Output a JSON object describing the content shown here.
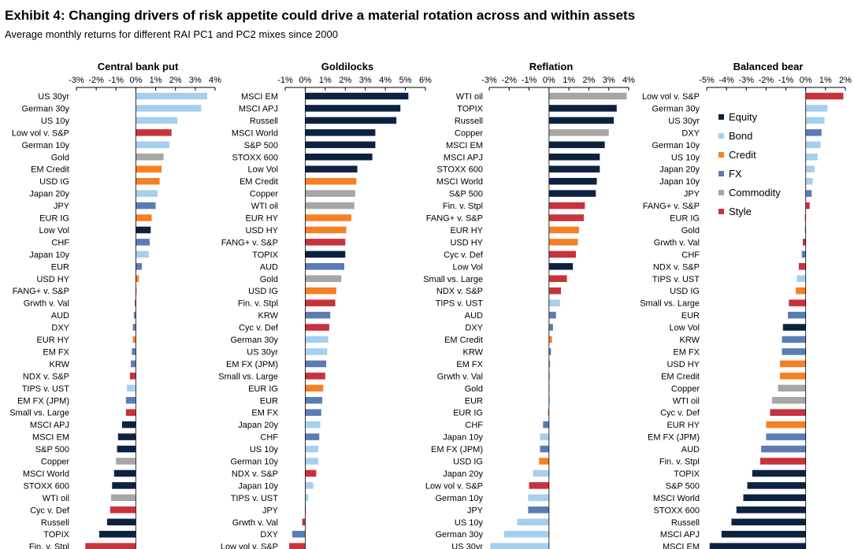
{
  "header": {
    "title": "Exhibit 4: Changing drivers of risk appetite could drive a material rotation across and within assets",
    "subtitle": "Average monthly returns for different RAI PC1 and PC2 mixes since 2000"
  },
  "colors": {
    "Equity": "#0d2240",
    "Bond": "#a6cfee",
    "Credit": "#f58025",
    "FX": "#5b7bb4",
    "Commodity": "#a6a6a6",
    "Style": "#c7323c"
  },
  "legend": [
    {
      "label": "Equity",
      "color": "#0d2240"
    },
    {
      "label": "Bond",
      "color": "#a6cfee"
    },
    {
      "label": "Credit",
      "color": "#f58025"
    },
    {
      "label": "FX",
      "color": "#5b7bb4"
    },
    {
      "label": "Commodity",
      "color": "#a6a6a6"
    },
    {
      "label": "Style",
      "color": "#c7323c"
    }
  ],
  "chart_data": [
    {
      "type": "bar",
      "orientation": "horizontal",
      "title": "Central bank put",
      "xlim": [
        -3,
        4
      ],
      "xticks": [
        "-3%",
        "-2%",
        "-1%",
        "0%",
        "1%",
        "2%",
        "3%",
        "4%"
      ],
      "categories": [
        "US 30yr",
        "German 30y",
        "US 10y",
        "Low vol v. S&P",
        "German 10y",
        "Gold",
        "EM Credit",
        "USD IG",
        "Japan 20y",
        "JPY",
        "EUR IG",
        "Low Vol",
        "CHF",
        "Japan 10y",
        "EUR",
        "USD HY",
        "FANG+ v. S&P",
        "Grwth v. Val",
        "AUD",
        "DXY",
        "EUR HY",
        "EM FX",
        "KRW",
        "NDX v. S&P",
        "TIPS v. UST",
        "EM FX (JPM)",
        "Small vs. Large",
        "MSCI APJ",
        "MSCI EM",
        "S&P 500",
        "Copper",
        "MSCI World",
        "STOXX 600",
        "WTI oil",
        "Cyc v. Def",
        "Russell",
        "TOPIX",
        "Fin. v. Stpl"
      ],
      "values": [
        3.6,
        3.3,
        2.1,
        1.8,
        1.7,
        1.4,
        1.3,
        1.2,
        1.1,
        1.0,
        0.8,
        0.75,
        0.7,
        0.65,
        0.3,
        0.15,
        0.0,
        -0.05,
        -0.1,
        -0.15,
        -0.15,
        -0.2,
        -0.25,
        -0.3,
        -0.45,
        -0.5,
        -0.5,
        -0.7,
        -0.9,
        -0.95,
        -1.0,
        -1.1,
        -1.2,
        -1.25,
        -1.3,
        -1.45,
        -1.85,
        -2.55
      ],
      "groups": [
        "Bond",
        "Bond",
        "Bond",
        "Style",
        "Bond",
        "Commodity",
        "Credit",
        "Credit",
        "Bond",
        "FX",
        "Credit",
        "Equity",
        "FX",
        "Bond",
        "FX",
        "Credit",
        "Style",
        "Style",
        "FX",
        "FX",
        "Credit",
        "FX",
        "FX",
        "Style",
        "Bond",
        "FX",
        "Style",
        "Equity",
        "Equity",
        "Equity",
        "Commodity",
        "Equity",
        "Equity",
        "Commodity",
        "Style",
        "Equity",
        "Equity",
        "Style"
      ]
    },
    {
      "type": "bar",
      "orientation": "horizontal",
      "title": "Goldilocks",
      "xlim": [
        -1,
        6
      ],
      "xticks": [
        "-1%",
        "0%",
        "1%",
        "2%",
        "3%",
        "4%",
        "5%",
        "6%"
      ],
      "categories": [
        "MSCI EM",
        "MSCI APJ",
        "Russell",
        "MSCI World",
        "S&P 500",
        "STOXX 600",
        "Low Vol",
        "EM Credit",
        "Copper",
        "WTI oil",
        "EUR HY",
        "USD HY",
        "FANG+ v. S&P",
        "TOPIX",
        "AUD",
        "Gold",
        "USD IG",
        "Fin. v. Stpl",
        "KRW",
        "Cyc v. Def",
        "German 30y",
        "US 30yr",
        "EM FX (JPM)",
        "Small vs. Large",
        "EUR IG",
        "EUR",
        "EM FX",
        "Japan 20y",
        "CHF",
        "US 10y",
        "German 10y",
        "NDX v. S&P",
        "Japan 10y",
        "TIPS v. UST",
        "JPY",
        "Grwth v. Val",
        "DXY",
        "Low vol v. S&P"
      ],
      "values": [
        5.15,
        4.75,
        4.55,
        3.5,
        3.5,
        3.35,
        2.6,
        2.55,
        2.5,
        2.45,
        2.3,
        2.05,
        2.0,
        2.0,
        1.95,
        1.8,
        1.55,
        1.5,
        1.25,
        1.2,
        1.15,
        1.1,
        1.05,
        1.0,
        0.9,
        0.85,
        0.8,
        0.75,
        0.7,
        0.65,
        0.65,
        0.55,
        0.4,
        0.15,
        0.0,
        -0.15,
        -0.65,
        -0.8
      ],
      "groups": [
        "Equity",
        "Equity",
        "Equity",
        "Equity",
        "Equity",
        "Equity",
        "Equity",
        "Credit",
        "Commodity",
        "Commodity",
        "Credit",
        "Credit",
        "Style",
        "Equity",
        "FX",
        "Commodity",
        "Credit",
        "Style",
        "FX",
        "Style",
        "Bond",
        "Bond",
        "FX",
        "Style",
        "Credit",
        "FX",
        "FX",
        "Bond",
        "FX",
        "Bond",
        "Bond",
        "Style",
        "Bond",
        "Bond",
        "FX",
        "Style",
        "FX",
        "Style"
      ]
    },
    {
      "type": "bar",
      "orientation": "horizontal",
      "title": "Reflation",
      "xlim": [
        -3,
        4
      ],
      "xticks": [
        "-3%",
        "-2%",
        "-1%",
        "0%",
        "1%",
        "2%",
        "3%",
        "4%"
      ],
      "categories": [
        "WTI oil",
        "TOPIX",
        "Russell",
        "Copper",
        "MSCI EM",
        "MSCI APJ",
        "STOXX 600",
        "MSCI World",
        "S&P 500",
        "Fin. v. Stpl",
        "FANG+ v. S&P",
        "EUR HY",
        "USD HY",
        "Cyc v. Def",
        "Low Vol",
        "Small vs. Large",
        "NDX v. S&P",
        "TIPS v. UST",
        "AUD",
        "DXY",
        "EM Credit",
        "KRW",
        "EM FX",
        "Grwth v. Val",
        "Gold",
        "EUR",
        "EUR IG",
        "CHF",
        "Japan 10y",
        "EM FX (JPM)",
        "USD IG",
        "Japan 20y",
        "Low vol v. S&P",
        "German 10y",
        "JPY",
        "US 10y",
        "German 30y",
        "US 30yr"
      ],
      "values": [
        3.9,
        3.4,
        3.25,
        3.0,
        2.8,
        2.55,
        2.55,
        2.4,
        2.35,
        1.8,
        1.75,
        1.5,
        1.45,
        1.35,
        1.2,
        0.9,
        0.6,
        0.55,
        0.35,
        0.2,
        0.15,
        0.1,
        0.05,
        0.0,
        0.0,
        0.0,
        -0.05,
        -0.3,
        -0.45,
        -0.45,
        -0.5,
        -0.8,
        -1.0,
        -1.05,
        -1.05,
        -1.6,
        -2.25,
        -2.95
      ],
      "groups": [
        "Commodity",
        "Equity",
        "Equity",
        "Commodity",
        "Equity",
        "Equity",
        "Equity",
        "Equity",
        "Equity",
        "Style",
        "Style",
        "Credit",
        "Credit",
        "Style",
        "Equity",
        "Style",
        "Style",
        "Bond",
        "FX",
        "FX",
        "Credit",
        "FX",
        "FX",
        "Style",
        "Commodity",
        "FX",
        "Credit",
        "FX",
        "Bond",
        "FX",
        "Credit",
        "Bond",
        "Style",
        "Bond",
        "FX",
        "Bond",
        "Bond",
        "Bond"
      ]
    },
    {
      "type": "bar",
      "orientation": "horizontal",
      "title": "Balanced bear",
      "xlim": [
        -5,
        2
      ],
      "xticks": [
        "-5%",
        "-4%",
        "-3%",
        "-2%",
        "-1%",
        "0%",
        "1%",
        "2%"
      ],
      "categories": [
        "Low vol v. S&P",
        "German 30y",
        "US 30yr",
        "DXY",
        "German 10y",
        "US 10y",
        "Japan 20y",
        "Japan 10y",
        "JPY",
        "FANG+ v. S&P",
        "EUR IG",
        "Gold",
        "Grwth v. Val",
        "CHF",
        "NDX v. S&P",
        "TIPS v. UST",
        "USD IG",
        "Small vs. Large",
        "EUR",
        "Low Vol",
        "KRW",
        "EM FX",
        "USD HY",
        "EM Credit",
        "Copper",
        "WTI oil",
        "Cyc v. Def",
        "EUR HY",
        "EM FX (JPM)",
        "AUD",
        "Fin. v. Stpl",
        "TOPIX",
        "S&P 500",
        "MSCI World",
        "STOXX 600",
        "Russell",
        "MSCI APJ",
        "MSCI EM"
      ],
      "values": [
        1.9,
        1.1,
        0.95,
        0.8,
        0.75,
        0.6,
        0.45,
        0.35,
        0.3,
        0.2,
        -0.05,
        -0.05,
        -0.15,
        -0.2,
        -0.35,
        -0.45,
        -0.5,
        -0.85,
        -0.9,
        -1.15,
        -1.2,
        -1.2,
        -1.3,
        -1.3,
        -1.4,
        -1.7,
        -1.8,
        -2.0,
        -2.0,
        -2.25,
        -2.3,
        -2.7,
        -2.95,
        -3.15,
        -3.5,
        -3.75,
        -4.25,
        -4.85
      ],
      "groups": [
        "Style",
        "Bond",
        "Bond",
        "FX",
        "Bond",
        "Bond",
        "Bond",
        "Bond",
        "FX",
        "Style",
        "Credit",
        "Commodity",
        "Style",
        "FX",
        "Style",
        "Bond",
        "Credit",
        "Style",
        "FX",
        "Equity",
        "FX",
        "FX",
        "Credit",
        "Credit",
        "Commodity",
        "Commodity",
        "Style",
        "Credit",
        "FX",
        "FX",
        "Style",
        "Equity",
        "Equity",
        "Equity",
        "Equity",
        "Equity",
        "Equity",
        "Equity"
      ]
    }
  ]
}
